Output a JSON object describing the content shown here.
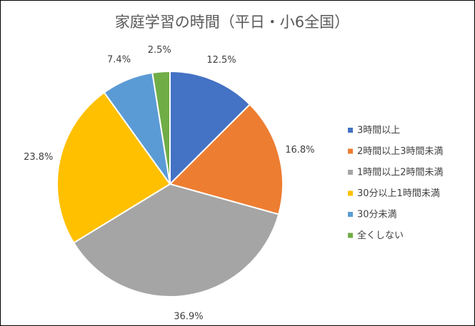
{
  "chart_data": {
    "type": "pie",
    "title": "家庭学習の時間（平日・小6全国）",
    "categories": [
      "3時間以上",
      "2時間以上3時間未満",
      "1時間以上2時間未満",
      "30分以上1時間未満",
      "30分未満",
      "全くしない"
    ],
    "values": [
      12.5,
      16.8,
      36.9,
      23.8,
      7.4,
      2.5
    ],
    "value_labels": [
      "12.5%",
      "16.8%",
      "36.9%",
      "23.8%",
      "7.4%",
      "2.5%"
    ],
    "colors": [
      "#4472c4",
      "#ed7d31",
      "#a5a5a5",
      "#ffc000",
      "#5b9bd5",
      "#70ad47"
    ],
    "legend": "right"
  }
}
